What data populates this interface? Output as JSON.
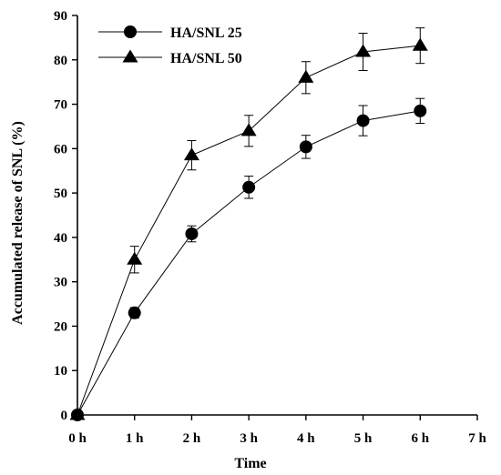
{
  "chart_data": {
    "type": "line",
    "xlabel": "Time",
    "ylabel": "Accumulated release of SNL (%)",
    "x_ticks": [
      "0 h",
      "1 h",
      "2 h",
      "3 h",
      "4 h",
      "5 h",
      "6 h",
      "7 h"
    ],
    "x": [
      0,
      1,
      2,
      3,
      4,
      5,
      6
    ],
    "xlim": [
      0,
      7
    ],
    "ylim": [
      0,
      90
    ],
    "y_ticks": [
      0,
      10,
      20,
      30,
      40,
      50,
      60,
      70,
      80,
      90
    ],
    "grid": false,
    "legend_position": "top-left",
    "series": [
      {
        "name": "HA/SNL 25",
        "marker": "circle",
        "values": [
          0,
          23,
          40.8,
          51.3,
          60.4,
          66.3,
          68.5
        ],
        "error": [
          0,
          1.2,
          1.8,
          2.5,
          2.6,
          3.4,
          2.8
        ]
      },
      {
        "name": "HA/SNL 50",
        "marker": "triangle",
        "values": [
          0,
          35,
          58.5,
          64,
          76,
          81.8,
          83.2
        ],
        "error": [
          0,
          3,
          3.3,
          3.5,
          3.6,
          4.2,
          4
        ]
      }
    ]
  }
}
